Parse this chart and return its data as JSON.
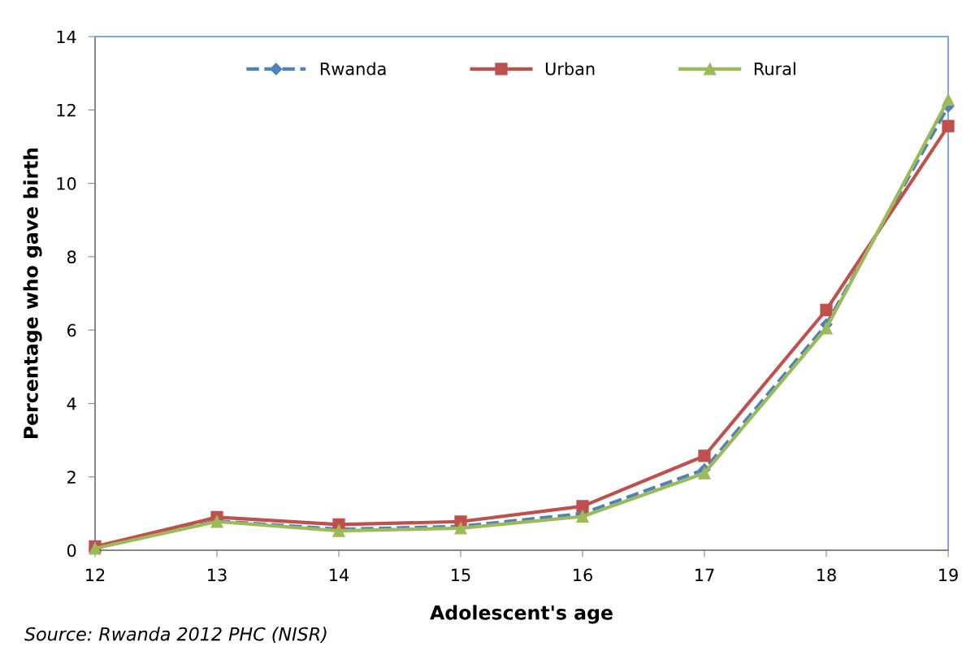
{
  "chart_data": {
    "type": "line",
    "xlabel": "Adolescent's age",
    "ylabel": "Percentage who gave birth",
    "categories": [
      "12",
      "13",
      "14",
      "15",
      "16",
      "17",
      "18",
      "19"
    ],
    "series": [
      {
        "name": "Rwanda",
        "color": "#4f81bd",
        "marker": "diamond",
        "line_style": "dashed",
        "values": [
          0.06,
          0.8,
          0.57,
          0.65,
          1.0,
          2.2,
          6.15,
          12.1
        ]
      },
      {
        "name": "Urban",
        "color": "#c0504d",
        "marker": "square",
        "line_style": "solid",
        "values": [
          0.1,
          0.9,
          0.7,
          0.78,
          1.2,
          2.57,
          6.55,
          11.56
        ]
      },
      {
        "name": "Rural",
        "color": "#9bbb59",
        "marker": "triangle",
        "line_style": "solid",
        "values": [
          0.05,
          0.78,
          0.53,
          0.6,
          0.92,
          2.1,
          6.05,
          12.28
        ]
      }
    ],
    "ylim": [
      0,
      14
    ],
    "yticks": [
      0,
      2,
      4,
      6,
      8,
      10,
      12,
      14
    ],
    "grid": false,
    "legend": "top",
    "annotations": [
      "Source: Rwanda 2012 PHC (NISR)"
    ]
  }
}
